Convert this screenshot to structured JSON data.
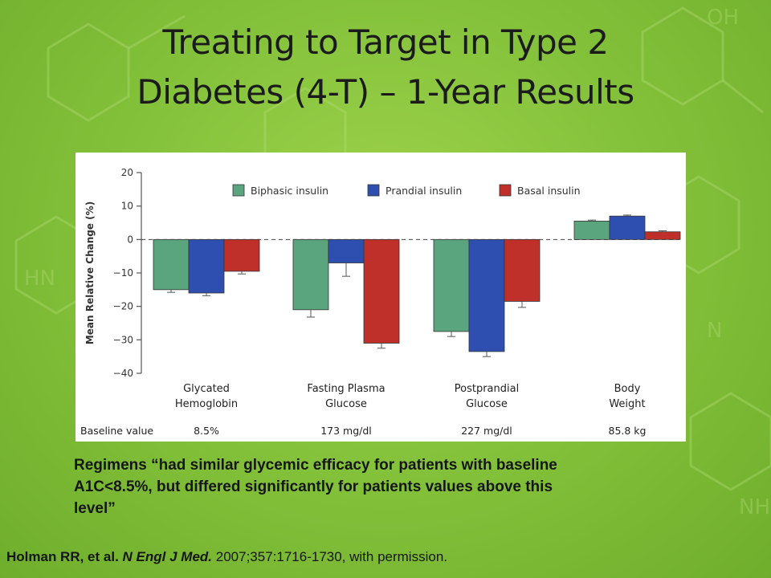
{
  "slide": {
    "title_line1": "Treating to Target in Type 2",
    "title_line2": "Diabetes (4-T) – 1-Year Results",
    "quote_line1": "Regimens “had similar glycemic efficacy for patients with baseline",
    "quote_line2": "A1C<8.5%, but differed significantly for patients values above this",
    "quote_line3": "level”",
    "citation_author": "Holman RR, et al.",
    "citation_journal": "N Engl J Med.",
    "citation_rest": "2007;357:1716-1730,  with permission."
  },
  "colors": {
    "background": "#86c33c",
    "biphasic": "#5aa57e",
    "prandial": "#2f4fb0",
    "basal": "#c0302a"
  },
  "chart_data": {
    "type": "bar",
    "ylabel": "Mean Relative Change (%)",
    "ylim": [
      -40,
      20
    ],
    "yticks": [
      "20",
      "10",
      "0",
      "−10",
      "−20",
      "−30",
      "−40"
    ],
    "ytick_values": [
      20,
      10,
      0,
      -10,
      -20,
      -30,
      -40
    ],
    "legend_position": "top",
    "categories": [
      {
        "line1": "Glycated",
        "line2": "Hemoglobin"
      },
      {
        "line1": "Fasting Plasma",
        "line2": "Glucose"
      },
      {
        "line1": "Postprandial",
        "line2": "Glucose"
      },
      {
        "line1": "Body",
        "line2": "Weight"
      }
    ],
    "series": [
      {
        "name": "Biphasic insulin",
        "values": [
          -15,
          -21,
          -27.5,
          5.5
        ],
        "errors": [
          0.8,
          2.2,
          1.5,
          0.3
        ]
      },
      {
        "name": "Prandial insulin",
        "values": [
          -16,
          -7,
          -33.5,
          7
        ],
        "errors": [
          0.8,
          4,
          1.5,
          0.3
        ]
      },
      {
        "name": "Basal insulin",
        "values": [
          -9.5,
          -31,
          -18.5,
          2.3
        ],
        "errors": [
          0.8,
          1.5,
          1.8,
          0.3
        ]
      }
    ],
    "baseline_label": "Baseline  value",
    "baseline_values": [
      "8.5%",
      "173 mg/dl",
      "227 mg/dl",
      "85.8 kg"
    ],
    "zero_line": "dashed"
  }
}
